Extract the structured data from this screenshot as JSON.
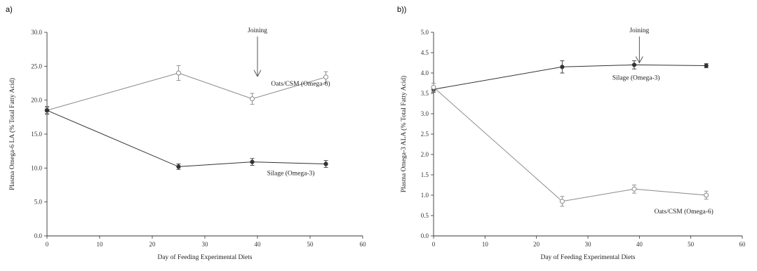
{
  "chart_data": [
    {
      "type": "line",
      "panel_label": "a)",
      "xlabel": "Day of Feeding Experimental Diets",
      "ylabel": "Plasma Omega-6 LA (% Total Fatty Acid)",
      "xlim": [
        0,
        60
      ],
      "ylim": [
        0,
        30
      ],
      "xticks": [
        "0",
        "10",
        "20",
        "30",
        "40",
        "50",
        "60"
      ],
      "yticks": [
        "0.0",
        "5.0",
        "10.0",
        "15.0",
        "20.0",
        "25.0",
        "30.0"
      ],
      "grid": false,
      "annotation": {
        "text": "Joining",
        "x": 40,
        "arrow_to": 23.5
      },
      "series": [
        {
          "label": "Oats/CSM (Omega-6)",
          "marker": "open",
          "color": "#888888",
          "x": [
            0,
            25,
            39,
            53
          ],
          "y": [
            18.5,
            24.0,
            20.2,
            23.4
          ],
          "err": [
            0.6,
            1.1,
            0.8,
            0.8
          ]
        },
        {
          "label": "Silage (Omega-3)",
          "marker": "filled",
          "color": "#333333",
          "x": [
            0,
            25,
            39,
            53
          ],
          "y": [
            18.5,
            10.2,
            10.9,
            10.6
          ],
          "err": [
            0.5,
            0.4,
            0.5,
            0.5
          ]
        }
      ]
    },
    {
      "type": "line",
      "panel_label": "b))",
      "xlabel": "Day of Feeding Experimental Diets",
      "ylabel": "Plasma Omega-3 ALA (% Total Fatty Acid)",
      "xlim": [
        0,
        60
      ],
      "ylim": [
        0,
        5
      ],
      "xticks": [
        "0",
        "10",
        "20",
        "30",
        "40",
        "50",
        "60"
      ],
      "yticks": [
        "0.0",
        "0.5",
        "1.0",
        "1.5",
        "2.0",
        "2.5",
        "3.0",
        "3.5",
        "4.0",
        "4.5",
        "5.0"
      ],
      "grid": false,
      "annotation": {
        "text": "Joining",
        "x": 40,
        "arrow_to": 4.25
      },
      "series": [
        {
          "label": "Silage (Omega-3)",
          "marker": "filled",
          "color": "#333333",
          "x": [
            0,
            25,
            39,
            53
          ],
          "y": [
            3.6,
            4.15,
            4.2,
            4.18
          ],
          "err": [
            0.07,
            0.15,
            0.1,
            0.05
          ]
        },
        {
          "label": "Oats/CSM (Omega-6)",
          "marker": "open",
          "color": "#888888",
          "x": [
            0,
            25,
            39,
            53
          ],
          "y": [
            3.65,
            0.85,
            1.15,
            1.0
          ],
          "err": [
            0.1,
            0.12,
            0.1,
            0.1
          ]
        }
      ]
    }
  ]
}
